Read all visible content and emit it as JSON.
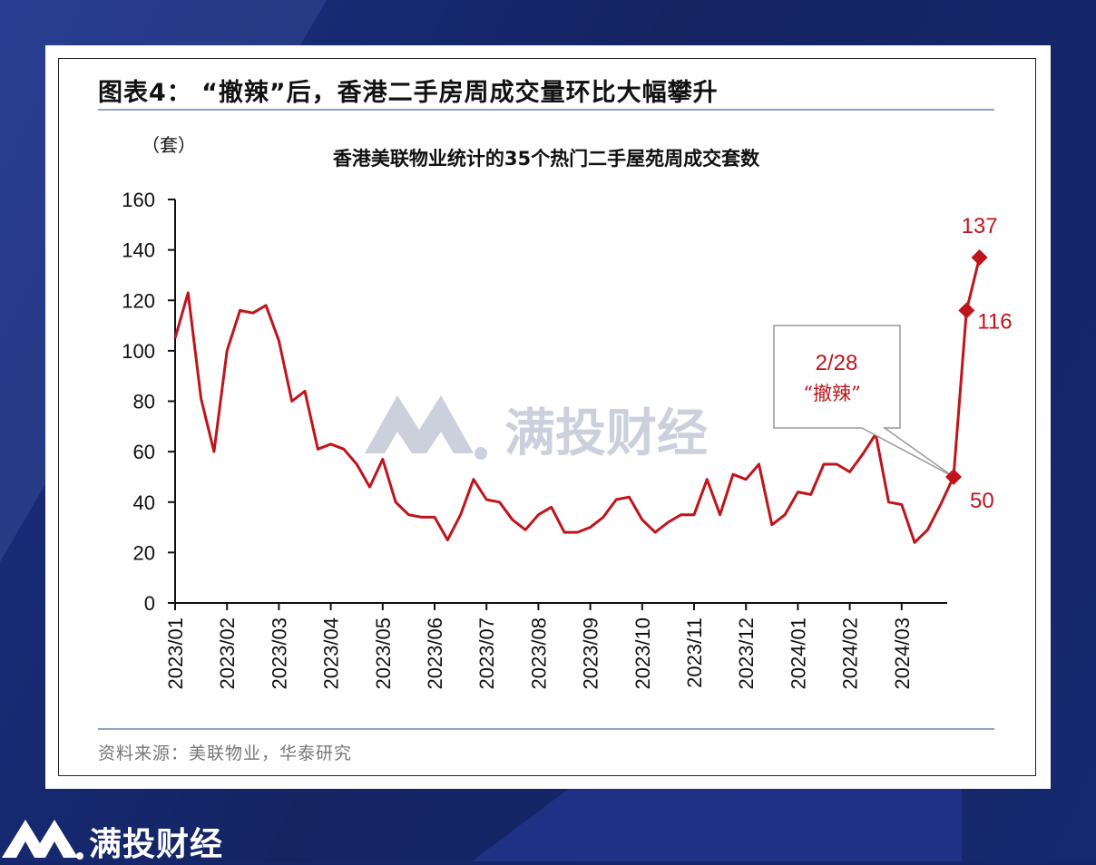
{
  "figure_title": "图表4：  “撤辣”后，香港二手房周成交量环比大幅攀升",
  "source_text": "资料来源：美联物业，华泰研究",
  "watermark_text": "满投财经",
  "footer_brand": "满投财经",
  "colors": {
    "line": "#c0141b",
    "axis": "#111111",
    "rule": "#8ea4bf",
    "background": "#16266a",
    "watermark": "#c9ccd8"
  },
  "chart_data": {
    "type": "line",
    "title": "香港美联物业统计的35个热门二手屋苑周成交套数",
    "ylabel": "（套）",
    "ylim": [
      0,
      160
    ],
    "yticks": [
      0,
      20,
      40,
      60,
      80,
      100,
      120,
      140,
      160
    ],
    "x_tick_labels": [
      "2023/01",
      "2023/02",
      "2023/03",
      "2023/04",
      "2023/05",
      "2023/06",
      "2023/07",
      "2023/08",
      "2023/09",
      "2023/10",
      "2023/11",
      "2023/12",
      "2024/01",
      "2024/02",
      "2024/03"
    ],
    "x_tick_week_index": [
      0,
      4,
      8,
      12,
      16,
      20,
      24,
      28,
      32,
      36,
      40,
      44,
      48,
      52,
      56
    ],
    "x_range_weeks": [
      0,
      60.5
    ],
    "legend": "none",
    "grid": false,
    "series": [
      {
        "values": [
          105,
          123,
          81,
          60,
          100,
          116,
          115,
          118,
          104,
          80,
          84,
          61,
          63,
          61,
          55,
          46,
          57,
          40,
          35,
          34,
          34,
          25,
          35,
          49,
          41,
          40,
          33,
          29,
          35,
          38,
          28,
          28,
          30,
          34,
          41,
          42,
          33,
          28,
          32,
          35,
          35,
          49,
          35,
          51,
          49,
          55,
          31,
          35,
          44,
          43,
          55,
          55,
          52,
          59,
          67,
          40,
          39,
          24,
          29,
          39,
          50,
          116,
          137
        ]
      }
    ],
    "highlighted_points": [
      {
        "index": 60,
        "value": 50,
        "label": "50"
      },
      {
        "index": 61,
        "value": 116,
        "label": "116"
      },
      {
        "index": 62,
        "value": 137,
        "label": "137"
      }
    ],
    "annotations": [
      {
        "line1": "2/28",
        "line2": "“撤辣”",
        "points_to_index": 60
      }
    ]
  }
}
